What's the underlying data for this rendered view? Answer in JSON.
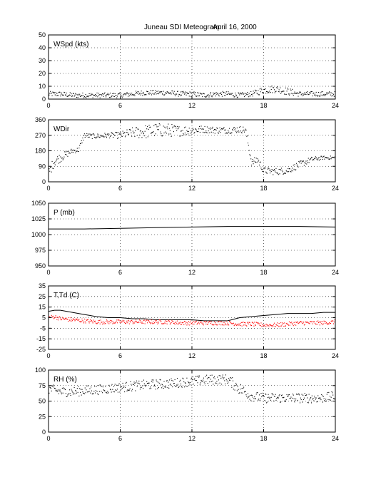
{
  "figure": {
    "title": "Juneau SDI Meteogram:",
    "date": "April 16, 2000"
  },
  "colors": {
    "axis": "#000000",
    "primary": "#000000",
    "dewpoint": "#ff0000",
    "background": "#ffffff"
  },
  "chart_data": [
    {
      "type": "scatter",
      "label": "WSpd (kts)",
      "xlim": [
        0,
        24
      ],
      "ylim": [
        0,
        50
      ],
      "xticks": [
        0,
        6,
        12,
        18,
        24
      ],
      "yticks": [
        0,
        10,
        20,
        30,
        40,
        50
      ],
      "grid": true,
      "series": [
        {
          "color": "#000000",
          "x": [
            0,
            1,
            2,
            3,
            4,
            5,
            6,
            7,
            8,
            9,
            10,
            11,
            12,
            13,
            14,
            15,
            16,
            17,
            18,
            19,
            20,
            21,
            22,
            23,
            24
          ],
          "y": [
            4,
            4,
            3,
            3,
            3,
            3,
            3,
            4,
            5,
            5,
            5,
            4,
            4,
            3,
            4,
            4,
            3,
            4,
            7,
            8,
            6,
            4,
            4,
            4,
            4
          ],
          "spread": [
            2,
            2,
            2,
            2,
            2,
            2,
            2,
            2,
            2,
            2,
            2,
            2,
            2,
            2,
            2,
            2,
            2,
            2,
            3,
            3,
            3,
            2,
            2,
            2,
            2
          ]
        }
      ]
    },
    {
      "type": "scatter",
      "label": "WDir",
      "xlim": [
        0,
        24
      ],
      "ylim": [
        0,
        360
      ],
      "xticks": [
        0,
        6,
        12,
        18,
        24
      ],
      "yticks": [
        0,
        90,
        180,
        270,
        360
      ],
      "grid": true,
      "series": [
        {
          "color": "#000000",
          "x": [
            0,
            0.5,
            1,
            1.5,
            2,
            2.5,
            3,
            3.5,
            4,
            5,
            6,
            7,
            8,
            9,
            10,
            11,
            12,
            13,
            14,
            15,
            16,
            16.5,
            17,
            17.5,
            18,
            19,
            20,
            21,
            22,
            23,
            24
          ],
          "y": [
            50,
            120,
            140,
            160,
            180,
            185,
            270,
            265,
            265,
            270,
            270,
            285,
            290,
            300,
            300,
            295,
            300,
            305,
            300,
            300,
            305,
            300,
            110,
            130,
            65,
            60,
            65,
            100,
            130,
            140,
            140
          ],
          "spread": [
            30,
            30,
            25,
            20,
            15,
            15,
            15,
            15,
            15,
            15,
            20,
            30,
            40,
            40,
            40,
            30,
            30,
            20,
            20,
            20,
            20,
            20,
            20,
            25,
            20,
            20,
            20,
            20,
            15,
            10,
            10
          ]
        }
      ]
    },
    {
      "type": "line",
      "label": "P (mb)",
      "xlim": [
        0,
        24
      ],
      "ylim": [
        950,
        1050
      ],
      "xticks": [
        0,
        6,
        12,
        18,
        24
      ],
      "yticks": [
        950,
        975,
        1000,
        1025,
        1050
      ],
      "grid": true,
      "series": [
        {
          "color": "#000000",
          "x": [
            0,
            3,
            6,
            9,
            12,
            15,
            18,
            21,
            24
          ],
          "y": [
            1009,
            1009,
            1010,
            1011,
            1012,
            1013,
            1013,
            1013,
            1012
          ]
        }
      ]
    },
    {
      "type": "line",
      "label": "T,Td (C)",
      "xlim": [
        0,
        24
      ],
      "ylim": [
        -25,
        35
      ],
      "xticks": [
        0,
        6,
        12,
        18,
        24
      ],
      "yticks": [
        -25,
        -15,
        -5,
        5,
        15,
        25,
        35
      ],
      "grid": true,
      "series": [
        {
          "color": "#000000",
          "x": [
            0,
            0.5,
            1,
            1.5,
            2,
            3,
            4,
            5,
            6,
            7,
            8,
            9,
            10,
            11,
            12,
            13,
            14,
            15,
            16,
            17,
            18,
            19,
            20,
            21,
            22,
            23,
            24
          ],
          "y": [
            11,
            12,
            12,
            11,
            10,
            8,
            6,
            5,
            5,
            4,
            4,
            3,
            3,
            3,
            3,
            2,
            2,
            2,
            5,
            6,
            7,
            8,
            9,
            9,
            9,
            10,
            10
          ]
        },
        {
          "color": "#ff0000",
          "x": [
            0,
            0.5,
            1,
            2,
            3,
            4,
            5,
            6,
            7,
            8,
            9,
            10,
            11,
            12,
            13,
            14,
            15,
            16,
            17,
            18,
            19,
            20,
            21,
            22,
            23,
            24
          ],
          "y": [
            5,
            6,
            4,
            3,
            2,
            1,
            1,
            1,
            1,
            1,
            1,
            1,
            0,
            0,
            0,
            0,
            0,
            -1,
            -1,
            -2,
            -2,
            -1,
            0,
            0,
            0,
            1
          ],
          "spread": [
            2,
            2,
            2,
            2,
            2,
            2,
            2,
            2,
            2,
            2,
            2,
            2,
            2,
            2,
            2,
            2,
            2,
            2,
            2,
            2,
            2,
            2,
            2,
            2,
            2,
            2
          ]
        }
      ]
    },
    {
      "type": "scatter",
      "label": "RH (%)",
      "xlim": [
        0,
        24
      ],
      "ylim": [
        0,
        100
      ],
      "xticks": [
        0,
        6,
        12,
        18,
        24
      ],
      "yticks": [
        0,
        25,
        50,
        75,
        100
      ],
      "grid": true,
      "series": [
        {
          "color": "#000000",
          "x": [
            0,
            1,
            2,
            3,
            4,
            5,
            6,
            7,
            8,
            9,
            10,
            11,
            12,
            13,
            14,
            15,
            16,
            17,
            18,
            19,
            20,
            21,
            22,
            23,
            24
          ],
          "y": [
            70,
            65,
            65,
            67,
            68,
            70,
            72,
            74,
            76,
            77,
            78,
            80,
            82,
            84,
            85,
            85,
            70,
            58,
            55,
            55,
            55,
            55,
            55,
            55,
            58
          ],
          "spread": [
            8,
            8,
            8,
            8,
            8,
            8,
            8,
            8,
            8,
            8,
            8,
            8,
            8,
            8,
            8,
            8,
            10,
            8,
            8,
            8,
            8,
            8,
            8,
            8,
            8
          ]
        }
      ]
    }
  ]
}
